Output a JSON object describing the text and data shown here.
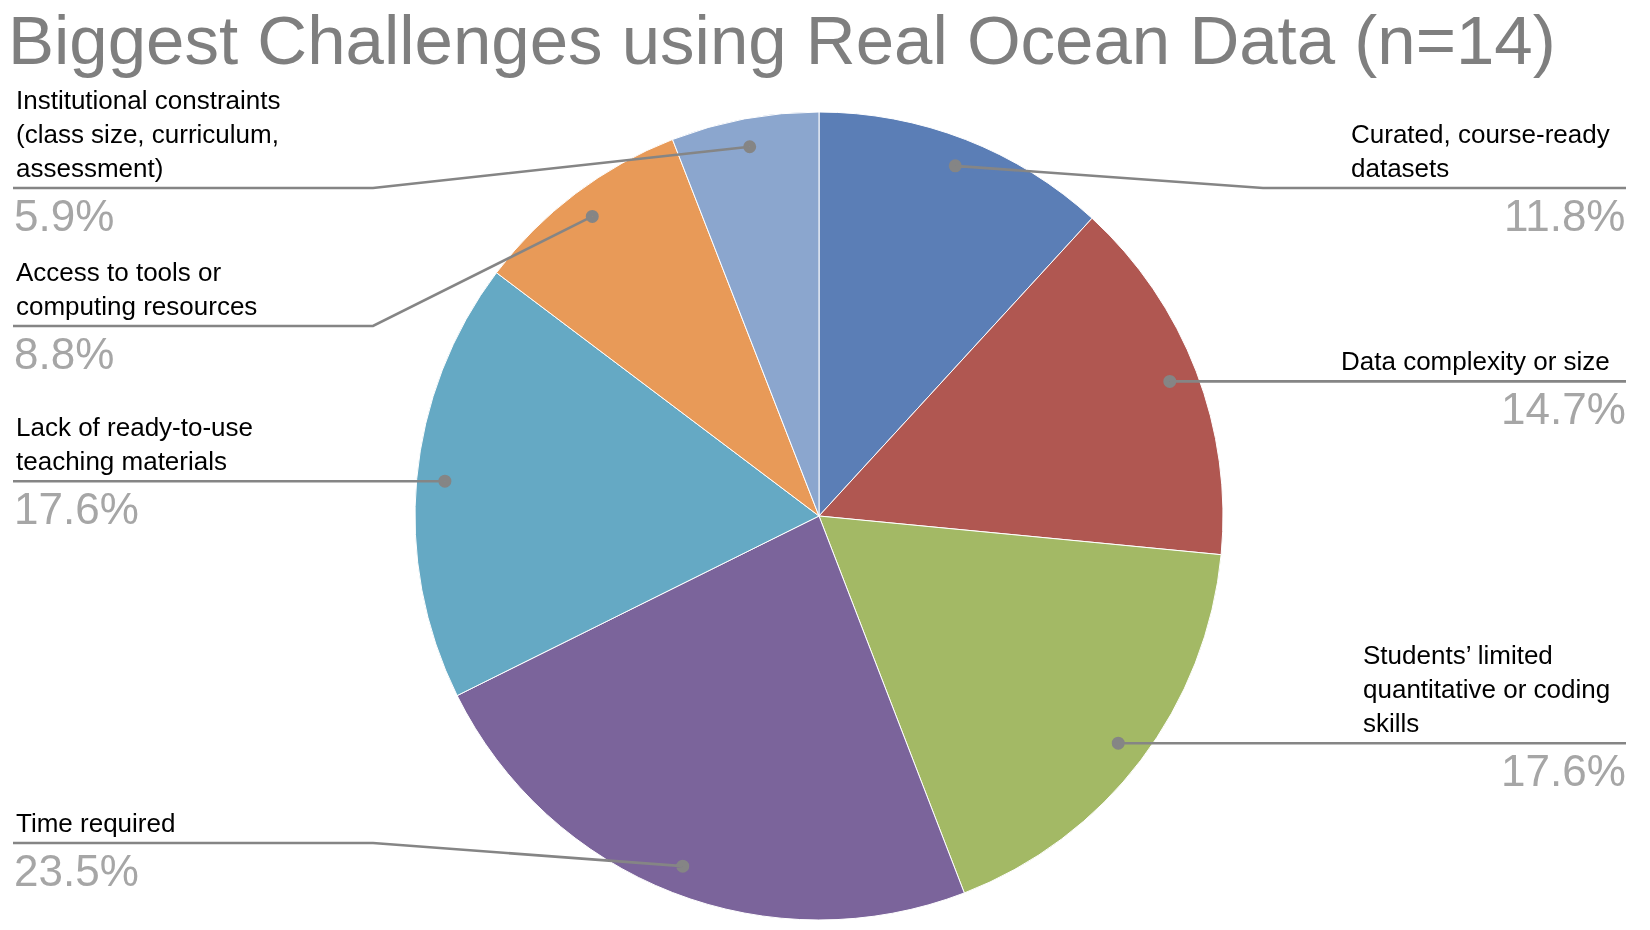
{
  "chart_data": {
    "type": "pie",
    "title": "Biggest Challenges using Real Ocean Data (n=14)",
    "categories": [
      "Curated, course-ready\ndatasets",
      "Data complexity or size",
      "Students’ limited\nquantitative or coding\nskills",
      "Time required",
      "Lack of ready-to-use\nteaching materials",
      "Access to tools or\ncomputing resources",
      "Institutional constraints\n(class size, curriculum,\nassessment)"
    ],
    "values": [
      11.8,
      14.7,
      17.6,
      23.5,
      17.6,
      8.8,
      5.9
    ],
    "value_labels": [
      "11.8%",
      "14.7%",
      "17.6%",
      "23.5%",
      "17.6%",
      "8.8%",
      "5.9%"
    ],
    "colors": [
      "#5b7eb6",
      "#b05751",
      "#a3b965",
      "#7b649b",
      "#65a9c4",
      "#e89a58",
      "#8ba6ce"
    ],
    "legend": false
  }
}
